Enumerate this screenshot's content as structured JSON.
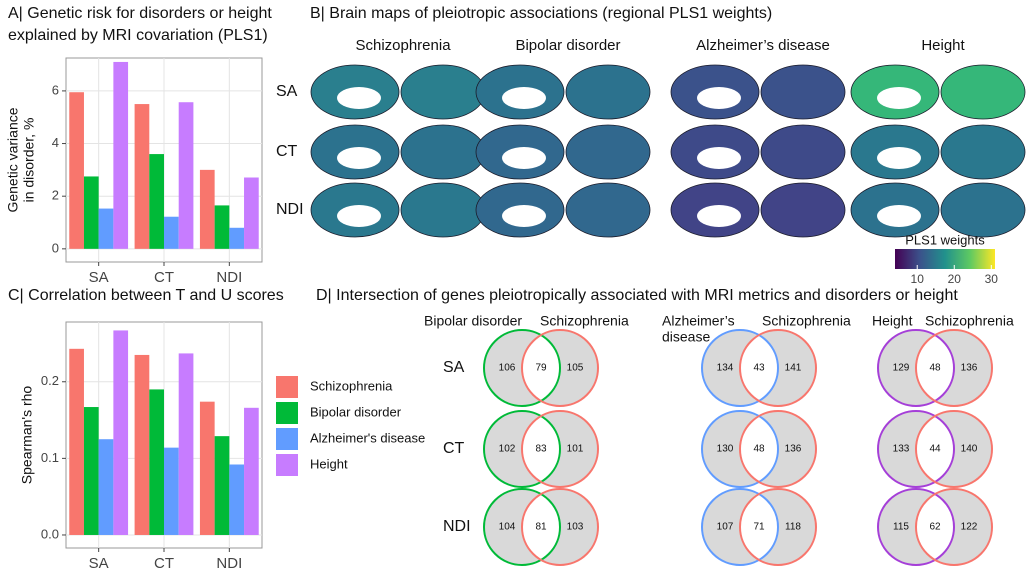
{
  "chart_data": [
    {
      "type": "bar",
      "title": [
        "A| Genetic risk for disorders or height",
        "explained by MRI covariation (PLS1)"
      ],
      "y_label": [
        "Genetic variance",
        "in disorder, %"
      ],
      "categories": [
        "SA",
        "CT",
        "NDI"
      ],
      "series": [
        {
          "color": "#F8766D",
          "values": [
            5.95,
            5.5,
            3.0
          ]
        },
        {
          "color": "#00BA38",
          "values": [
            2.75,
            3.6,
            1.65
          ]
        },
        {
          "color": "#619CFF",
          "values": [
            1.53,
            1.22,
            0.8
          ]
        },
        {
          "color": "#C77CFF",
          "values": [
            7.1,
            5.57,
            2.71
          ]
        }
      ],
      "ylim": [
        -0.5,
        7.25
      ],
      "yticks": [
        0,
        2,
        4,
        6
      ],
      "grid": true
    },
    {
      "type": "bar",
      "title": [
        "C| Correlation between T and U scores"
      ],
      "y_label": [
        "Spearman's rho"
      ],
      "categories": [
        "SA",
        "CT",
        "NDI"
      ],
      "series": [
        {
          "name": "Schizophrenia",
          "color": "#F8766D",
          "values": [
            0.243,
            0.235,
            0.174
          ]
        },
        {
          "name": "Bipolar disorder",
          "color": "#00BA38",
          "values": [
            0.167,
            0.19,
            0.129
          ]
        },
        {
          "name": "Alzheimer's disease",
          "color": "#619CFF",
          "values": [
            0.125,
            0.114,
            0.092
          ]
        },
        {
          "name": "Height",
          "color": "#C77CFF",
          "values": [
            0.267,
            0.237,
            0.166
          ]
        }
      ],
      "ylim": [
        -0.017,
        0.278
      ],
      "yticks": [
        {
          "value": 0,
          "label": "0.0"
        },
        0.1,
        0.2
      ],
      "grid": true,
      "legend": "right"
    }
  ],
  "panel_b": {
    "title": "B| Brain maps of pleiotropic associations (regional PLS1 weights)",
    "columns": [
      "Schizophrenia",
      "Bipolar disorder",
      "Alzheimer’s disease",
      "Height"
    ],
    "rows": [
      "SA",
      "CT",
      "NDI"
    ],
    "colorbar": {
      "title": "PLS1 weights",
      "range": [
        4,
        31
      ],
      "ticks": [
        10,
        20,
        30
      ]
    }
  },
  "panel_d": {
    "title": "D| Intersection of genes pleiotropically associated with MRI metrics and disorders or height",
    "rows": [
      "SA",
      "CT",
      "NDI"
    ],
    "groups": [
      {
        "left": [
          "Bipolar disorder"
        ],
        "right": "Schizophrenia",
        "colors": [
          "#00BA38",
          "#F8766D"
        ],
        "counts": [
          [
            106,
            79,
            105
          ],
          [
            102,
            83,
            101
          ],
          [
            104,
            81,
            103
          ]
        ]
      },
      {
        "left": [
          "Alzheimer’s",
          "disease"
        ],
        "right": "Schizophrenia",
        "colors": [
          "#619CFF",
          "#F8766D"
        ],
        "counts": [
          [
            134,
            43,
            141
          ],
          [
            130,
            48,
            136
          ],
          [
            107,
            71,
            118
          ]
        ]
      },
      {
        "left": [
          "Height"
        ],
        "right": "Schizophrenia",
        "colors": [
          "#A53FD8",
          "#F8766D"
        ],
        "counts": [
          [
            129,
            48,
            136
          ],
          [
            133,
            44,
            140
          ],
          [
            115,
            62,
            122
          ]
        ]
      }
    ]
  }
}
